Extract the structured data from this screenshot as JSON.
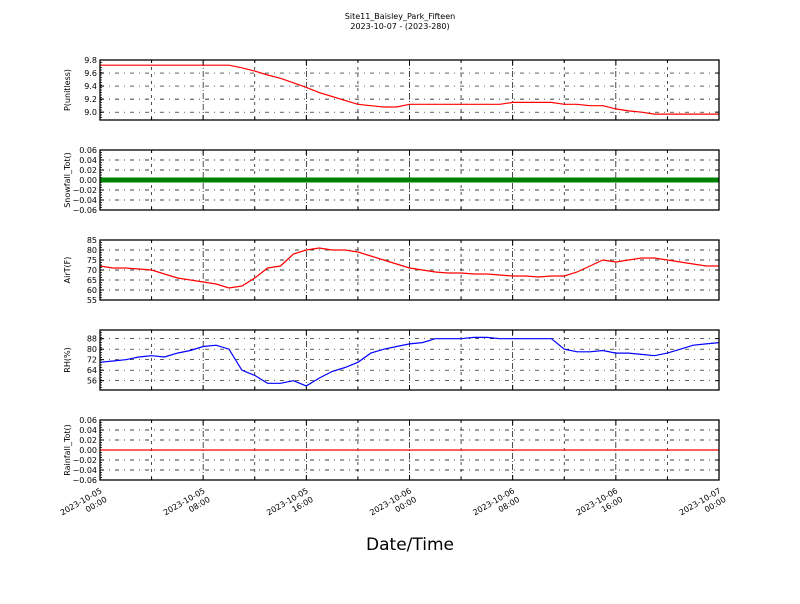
{
  "title": "Site11_Baisley_Park_Fifteen",
  "subtitle": "2023-10-07 - (2023-280)",
  "chart_data": {
    "type": "line",
    "xlabel": "Date/Time",
    "x_ticks": [
      {
        "hour": 0,
        "label": [
          "2023-10-05",
          "00:00"
        ]
      },
      {
        "hour": 8,
        "label": [
          "2023-10-05",
          "08:00"
        ]
      },
      {
        "hour": 16,
        "label": [
          "2023-10-05",
          "16:00"
        ]
      },
      {
        "hour": 24,
        "label": [
          "2023-10-06",
          "00:00"
        ]
      },
      {
        "hour": 32,
        "label": [
          "2023-10-06",
          "08:00"
        ]
      },
      {
        "hour": 40,
        "label": [
          "2023-10-06",
          "16:00"
        ]
      },
      {
        "hour": 48,
        "label": [
          "2023-10-07",
          "00:00"
        ]
      }
    ],
    "x_hours_from": "2023-10-05 00:00",
    "grid": true,
    "panels": [
      {
        "ylabel": "P(unitless)",
        "color": "#ff0000",
        "ylim": [
          8.88,
          9.8
        ],
        "yticks": [
          "9.0",
          "9.2",
          "9.4",
          "9.6",
          "9.8"
        ],
        "values": [
          9.72,
          9.72,
          9.72,
          9.72,
          9.72,
          9.72,
          9.72,
          9.72,
          9.72,
          9.72,
          9.72,
          9.68,
          9.63,
          9.57,
          9.52,
          9.45,
          9.38,
          9.3,
          9.24,
          9.18,
          9.12,
          9.1,
          9.08,
          9.08,
          9.12,
          9.12,
          9.12,
          9.12,
          9.12,
          9.12,
          9.12,
          9.12,
          9.15,
          9.15,
          9.15,
          9.15,
          9.12,
          9.12,
          9.1,
          9.1,
          9.05,
          9.02,
          9.0,
          8.97,
          8.97,
          8.97,
          8.97,
          8.97,
          8.97
        ]
      },
      {
        "ylabel": "Snowfall_Tot()",
        "color": "#008000",
        "ylim": [
          -0.06,
          0.06
        ],
        "thick": true,
        "yticks": [
          "-0.06",
          "-0.04",
          "-0.02",
          "0.00",
          "0.02",
          "0.04",
          "0.06"
        ],
        "values": [
          0,
          0,
          0,
          0,
          0,
          0,
          0,
          0,
          0,
          0,
          0,
          0,
          0,
          0,
          0,
          0,
          0,
          0,
          0,
          0,
          0,
          0,
          0,
          0,
          0,
          0,
          0,
          0,
          0,
          0,
          0,
          0,
          0,
          0,
          0,
          0,
          0,
          0,
          0,
          0,
          0,
          0,
          0,
          0,
          0,
          0,
          0,
          0,
          0
        ]
      },
      {
        "ylabel": "AirT(F)",
        "color": "#ff0000",
        "ylim": [
          55,
          85
        ],
        "yticks": [
          "55",
          "60",
          "65",
          "70",
          "75",
          "80",
          "85"
        ],
        "values": [
          72,
          71,
          71,
          70.5,
          70,
          68,
          66,
          65,
          64,
          63,
          61,
          62,
          66,
          71,
          72,
          78,
          80,
          81,
          80,
          80,
          79,
          77,
          75,
          73,
          71,
          70,
          69,
          68.5,
          68.5,
          68,
          68,
          67.5,
          67,
          67,
          66.5,
          67,
          67,
          69,
          72,
          75,
          74,
          75,
          76,
          76,
          75,
          74,
          73,
          72,
          72
        ]
      },
      {
        "ylabel": "RH(%)",
        "color": "#0000ff",
        "ylim": [
          48.9,
          94.6
        ],
        "yticks": [
          "56",
          "64",
          "72",
          "80",
          "88"
        ],
        "values": [
          70,
          71,
          72,
          74,
          75,
          74,
          77,
          79,
          82,
          83,
          80,
          64,
          60,
          54,
          54,
          56,
          52,
          58,
          63,
          66,
          70,
          77,
          80,
          82,
          84,
          85,
          88,
          88,
          88,
          89,
          89,
          88,
          88,
          88,
          88,
          88,
          80,
          78,
          78,
          79,
          77,
          77,
          76,
          75,
          77,
          80,
          83,
          84,
          85
        ]
      },
      {
        "ylabel": "Rainfall_Tot()",
        "color": "#ff0000",
        "ylim": [
          -0.06,
          0.06
        ],
        "yticks": [
          "-0.06",
          "-0.04",
          "-0.02",
          "0.00",
          "0.02",
          "0.04",
          "0.06"
        ],
        "values": [
          0,
          0,
          0,
          0,
          0,
          0,
          0,
          0,
          0,
          0,
          0,
          0,
          0,
          0,
          0,
          0,
          0,
          0,
          0,
          0,
          0,
          0,
          0,
          0,
          0,
          0,
          0,
          0,
          0,
          0,
          0,
          0,
          0,
          0,
          0,
          0,
          0,
          0,
          0,
          0,
          0,
          0,
          0,
          0,
          0,
          0,
          0,
          0,
          0
        ]
      }
    ]
  }
}
